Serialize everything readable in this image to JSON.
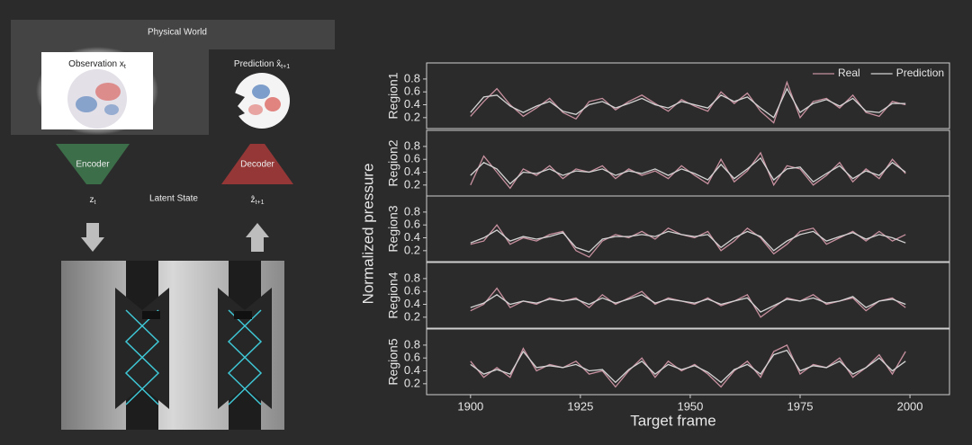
{
  "diagram": {
    "physical_world": "Physical World",
    "observation": {
      "label": "Observation x",
      "sub": "t"
    },
    "prediction": {
      "label": "Prediction x̂",
      "sub": "t+1"
    },
    "encoder": "Encoder",
    "decoder": "Decoder",
    "latent": "Latent State",
    "z": {
      "label": "z",
      "sub": "t"
    },
    "z_hat": {
      "label": "ẑ",
      "sub": "t+1"
    }
  },
  "figure": {
    "ylabel": "Normalized pressure",
    "xlabel": "Target frame"
  },
  "chart_data": [
    {
      "type": "line",
      "ylabel": "Region1",
      "legend": "upper right",
      "x": [
        1900,
        1903,
        1906,
        1909,
        1912,
        1915,
        1918,
        1921,
        1924,
        1927,
        1930,
        1933,
        1936,
        1939,
        1942,
        1945,
        1948,
        1951,
        1954,
        1957,
        1960,
        1963,
        1966,
        1969,
        1972,
        1975,
        1978,
        1981,
        1984,
        1987,
        1990,
        1993,
        1996,
        1999
      ],
      "xlim": [
        1890,
        2009
      ],
      "ylim": [
        0.03,
        1.05
      ],
      "yticks": [
        0.2,
        0.4,
        0.6,
        0.8
      ],
      "series": [
        {
          "name": "Real",
          "color": "#c7909f",
          "values": [
            0.22,
            0.45,
            0.65,
            0.4,
            0.22,
            0.35,
            0.5,
            0.28,
            0.18,
            0.45,
            0.5,
            0.32,
            0.45,
            0.55,
            0.42,
            0.3,
            0.48,
            0.38,
            0.3,
            0.6,
            0.42,
            0.58,
            0.3,
            0.12,
            0.75,
            0.2,
            0.45,
            0.5,
            0.35,
            0.55,
            0.28,
            0.22,
            0.45,
            0.4
          ]
        },
        {
          "name": "Prediction",
          "color": "#d4d4d4",
          "values": [
            0.28,
            0.52,
            0.55,
            0.38,
            0.28,
            0.38,
            0.45,
            0.3,
            0.25,
            0.4,
            0.45,
            0.35,
            0.42,
            0.5,
            0.4,
            0.35,
            0.45,
            0.4,
            0.35,
            0.55,
            0.45,
            0.52,
            0.35,
            0.2,
            0.65,
            0.28,
            0.42,
            0.48,
            0.38,
            0.5,
            0.3,
            0.28,
            0.42,
            0.42
          ]
        }
      ]
    },
    {
      "type": "line",
      "ylabel": "Region2",
      "x": [
        1900,
        1903,
        1906,
        1909,
        1912,
        1915,
        1918,
        1921,
        1924,
        1927,
        1930,
        1933,
        1936,
        1939,
        1942,
        1945,
        1948,
        1951,
        1954,
        1957,
        1960,
        1963,
        1966,
        1969,
        1972,
        1975,
        1978,
        1981,
        1984,
        1987,
        1990,
        1993,
        1996,
        1999
      ],
      "xlim": [
        1890,
        2009
      ],
      "ylim": [
        0.03,
        1.05
      ],
      "yticks": [
        0.2,
        0.4,
        0.6,
        0.8
      ],
      "series": [
        {
          "name": "Real",
          "color": "#c7909f",
          "values": [
            0.2,
            0.65,
            0.4,
            0.15,
            0.45,
            0.35,
            0.5,
            0.3,
            0.45,
            0.4,
            0.5,
            0.3,
            0.45,
            0.35,
            0.42,
            0.3,
            0.5,
            0.35,
            0.22,
            0.6,
            0.25,
            0.42,
            0.7,
            0.2,
            0.5,
            0.45,
            0.2,
            0.35,
            0.55,
            0.25,
            0.45,
            0.3,
            0.6,
            0.38
          ]
        },
        {
          "name": "Prediction",
          "color": "#d4d4d4",
          "values": [
            0.35,
            0.55,
            0.45,
            0.22,
            0.4,
            0.38,
            0.45,
            0.35,
            0.42,
            0.4,
            0.45,
            0.35,
            0.42,
            0.38,
            0.45,
            0.35,
            0.45,
            0.38,
            0.28,
            0.52,
            0.3,
            0.45,
            0.62,
            0.28,
            0.45,
            0.48,
            0.25,
            0.38,
            0.5,
            0.3,
            0.42,
            0.35,
            0.55,
            0.4
          ]
        }
      ]
    },
    {
      "type": "line",
      "ylabel": "Region3",
      "x": [
        1900,
        1903,
        1906,
        1909,
        1912,
        1915,
        1918,
        1921,
        1924,
        1927,
        1930,
        1933,
        1936,
        1939,
        1942,
        1945,
        1948,
        1951,
        1954,
        1957,
        1960,
        1963,
        1966,
        1969,
        1972,
        1975,
        1978,
        1981,
        1984,
        1987,
        1990,
        1993,
        1996,
        1999
      ],
      "xlim": [
        1890,
        2009
      ],
      "ylim": [
        0.03,
        1.05
      ],
      "yticks": [
        0.2,
        0.4,
        0.6,
        0.8
      ],
      "series": [
        {
          "name": "Real",
          "color": "#c7909f",
          "values": [
            0.3,
            0.35,
            0.6,
            0.3,
            0.4,
            0.35,
            0.45,
            0.5,
            0.2,
            0.1,
            0.35,
            0.45,
            0.4,
            0.5,
            0.38,
            0.55,
            0.45,
            0.4,
            0.5,
            0.2,
            0.35,
            0.55,
            0.4,
            0.15,
            0.3,
            0.5,
            0.55,
            0.3,
            0.4,
            0.5,
            0.35,
            0.5,
            0.35,
            0.45
          ]
        },
        {
          "name": "Prediction",
          "color": "#d4d4d4",
          "values": [
            0.32,
            0.4,
            0.52,
            0.35,
            0.42,
            0.38,
            0.42,
            0.48,
            0.25,
            0.18,
            0.38,
            0.42,
            0.42,
            0.45,
            0.42,
            0.5,
            0.45,
            0.42,
            0.45,
            0.25,
            0.4,
            0.5,
            0.42,
            0.2,
            0.35,
            0.45,
            0.5,
            0.35,
            0.42,
            0.48,
            0.38,
            0.45,
            0.4,
            0.32
          ]
        }
      ]
    },
    {
      "type": "line",
      "ylabel": "Region4",
      "x": [
        1900,
        1903,
        1906,
        1909,
        1912,
        1915,
        1918,
        1921,
        1924,
        1927,
        1930,
        1933,
        1936,
        1939,
        1942,
        1945,
        1948,
        1951,
        1954,
        1957,
        1960,
        1963,
        1966,
        1969,
        1972,
        1975,
        1978,
        1981,
        1984,
        1987,
        1990,
        1993,
        1996,
        1999
      ],
      "xlim": [
        1890,
        2009
      ],
      "ylim": [
        0.03,
        1.05
      ],
      "yticks": [
        0.2,
        0.4,
        0.6,
        0.8
      ],
      "series": [
        {
          "name": "Real",
          "color": "#c7909f",
          "values": [
            0.3,
            0.4,
            0.65,
            0.35,
            0.45,
            0.4,
            0.5,
            0.45,
            0.5,
            0.35,
            0.55,
            0.4,
            0.5,
            0.6,
            0.4,
            0.5,
            0.45,
            0.4,
            0.5,
            0.38,
            0.45,
            0.55,
            0.2,
            0.35,
            0.5,
            0.45,
            0.55,
            0.4,
            0.45,
            0.5,
            0.3,
            0.45,
            0.5,
            0.35
          ]
        },
        {
          "name": "Prediction",
          "color": "#d4d4d4",
          "values": [
            0.35,
            0.42,
            0.55,
            0.4,
            0.45,
            0.42,
            0.48,
            0.45,
            0.48,
            0.4,
            0.5,
            0.42,
            0.48,
            0.55,
            0.42,
            0.48,
            0.45,
            0.42,
            0.48,
            0.4,
            0.45,
            0.5,
            0.28,
            0.38,
            0.48,
            0.45,
            0.5,
            0.42,
            0.45,
            0.52,
            0.35,
            0.45,
            0.48,
            0.4
          ]
        }
      ]
    },
    {
      "type": "line",
      "ylabel": "Region5",
      "x": [
        1900,
        1903,
        1906,
        1909,
        1912,
        1915,
        1918,
        1921,
        1924,
        1927,
        1930,
        1933,
        1936,
        1939,
        1942,
        1945,
        1948,
        1951,
        1954,
        1957,
        1960,
        1963,
        1966,
        1969,
        1972,
        1975,
        1978,
        1981,
        1984,
        1987,
        1990,
        1993,
        1996,
        1999
      ],
      "xlim": [
        1890,
        2009
      ],
      "ylim": [
        0.03,
        1.05
      ],
      "yticks": [
        0.2,
        0.4,
        0.6,
        0.8
      ],
      "xticks": [
        1900,
        1925,
        1950,
        1975,
        2000
      ],
      "series": [
        {
          "name": "Real",
          "color": "#c7909f",
          "values": [
            0.55,
            0.3,
            0.45,
            0.3,
            0.75,
            0.4,
            0.5,
            0.45,
            0.55,
            0.35,
            0.4,
            0.15,
            0.4,
            0.6,
            0.3,
            0.55,
            0.4,
            0.5,
            0.35,
            0.15,
            0.4,
            0.55,
            0.3,
            0.7,
            0.8,
            0.35,
            0.5,
            0.45,
            0.6,
            0.3,
            0.45,
            0.65,
            0.35,
            0.7
          ]
        },
        {
          "name": "Prediction",
          "color": "#d4d4d4",
          "values": [
            0.5,
            0.35,
            0.42,
            0.35,
            0.7,
            0.45,
            0.48,
            0.45,
            0.5,
            0.4,
            0.42,
            0.22,
            0.42,
            0.55,
            0.35,
            0.5,
            0.42,
            0.48,
            0.38,
            0.22,
            0.42,
            0.5,
            0.35,
            0.65,
            0.72,
            0.4,
            0.48,
            0.45,
            0.55,
            0.35,
            0.45,
            0.6,
            0.4,
            0.55
          ]
        }
      ]
    }
  ]
}
